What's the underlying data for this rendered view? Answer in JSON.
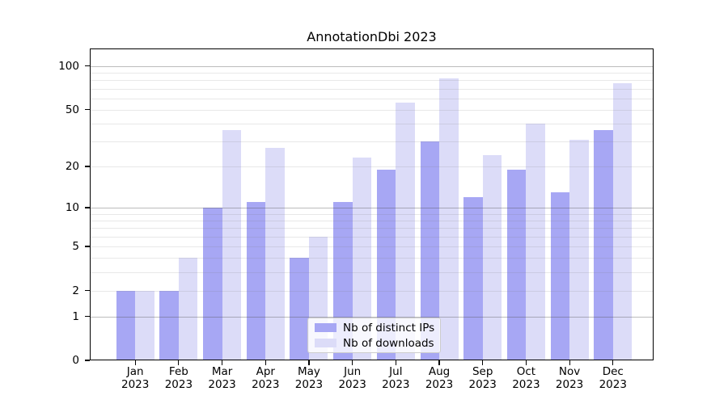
{
  "title": "AnnotationDbi 2023",
  "chart_data": {
    "type": "bar",
    "title": "AnnotationDbi 2023",
    "categories": [
      "Jan 2023",
      "Feb 2023",
      "Mar 2023",
      "Apr 2023",
      "May 2023",
      "Jun 2023",
      "Jul 2023",
      "Aug 2023",
      "Sep 2023",
      "Oct 2023",
      "Nov 2023",
      "Dec 2023"
    ],
    "x_tick_month": [
      "Jan",
      "Feb",
      "Mar",
      "Apr",
      "May",
      "Jun",
      "Jul",
      "Aug",
      "Sep",
      "Oct",
      "Nov",
      "Dec"
    ],
    "x_tick_year": "2023",
    "series": [
      {
        "key": "ips",
        "name": "Nb of distinct IPs",
        "color": "#a7a7f4",
        "values": [
          2,
          2,
          10,
          11,
          4,
          11,
          19,
          30,
          12,
          19,
          13,
          36
        ]
      },
      {
        "key": "downloads",
        "name": "Nb of downloads",
        "color": "#dcdcf8",
        "values": [
          2,
          4,
          36,
          27,
          6,
          23,
          56,
          82,
          24,
          40,
          31,
          76
        ]
      }
    ],
    "yscale": "log1p",
    "ylim": [
      0,
      135
    ],
    "y_tick_labels": [
      100,
      50,
      20,
      10,
      5,
      2,
      1,
      0
    ],
    "y_major_gridlines": [
      1,
      10,
      100
    ],
    "y_minor_gridlines": [
      2,
      3,
      4,
      5,
      6,
      7,
      8,
      9,
      20,
      30,
      40,
      50,
      60,
      70,
      80,
      90
    ],
    "grid": "horizontal",
    "legend_position": "lower center"
  },
  "colors": {
    "bar_ips": "#a7a7f4",
    "bar_downloads": "#dcdcf8",
    "major_grid": "#b3b3b3",
    "minor_grid": "#e3e3e3",
    "spine": "#000000",
    "text": "#000000",
    "legend_border": "#cccccc",
    "background": "#ffffff"
  }
}
